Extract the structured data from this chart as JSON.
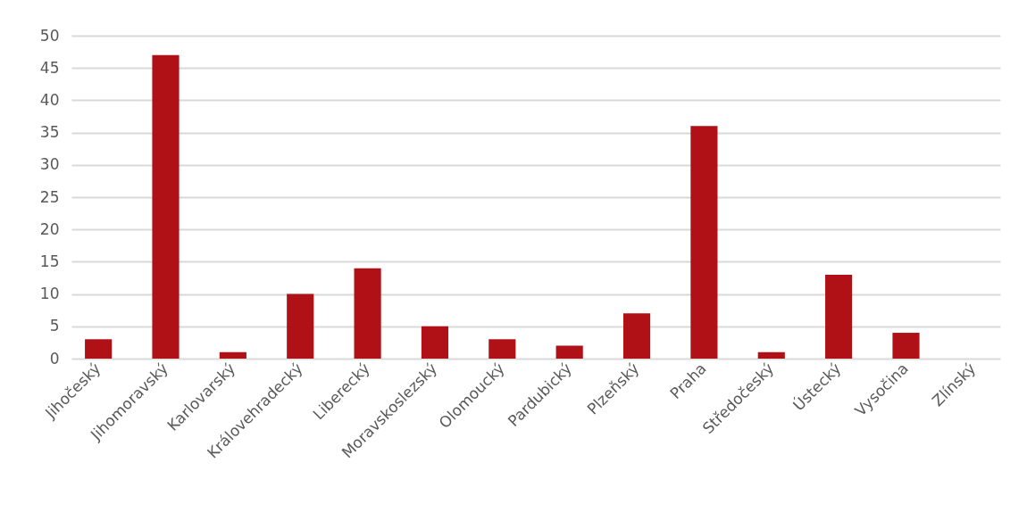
{
  "chart_data": {
    "type": "bar",
    "categories": [
      "Jihočeský",
      "Jihomoravský",
      "Karlovarský",
      "Královehradecký",
      "Liberecký",
      "Moravskoslezský",
      "Olomoucký",
      "Pardubický",
      "Plzeňský",
      "Praha",
      "Středočeský",
      "Ústecký",
      "Vysočina",
      "Zlínský"
    ],
    "values": [
      3,
      47,
      1,
      10,
      14,
      5,
      3,
      2,
      7,
      36,
      1,
      13,
      4,
      0
    ],
    "color": "#b01116",
    "ylim": [
      0,
      50
    ],
    "yticks": [
      0,
      5,
      10,
      15,
      20,
      25,
      30,
      35,
      40,
      45,
      50
    ],
    "grid": "y"
  }
}
